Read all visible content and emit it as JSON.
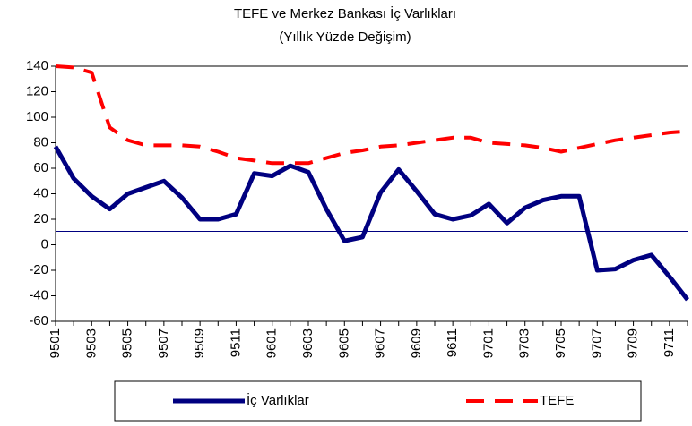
{
  "chart_data": {
    "type": "line",
    "title": "TEFE ve Merkez Bankası İç Varlıkları",
    "subtitle": "(Yıllık Yüzde Değişim)",
    "categories": [
      "9501",
      null,
      "9503",
      null,
      "9505",
      null,
      "9507",
      null,
      "9509",
      null,
      "9511",
      null,
      "9601",
      null,
      "9603",
      null,
      "9605",
      null,
      "9607",
      null,
      "9609",
      null,
      "9611",
      null,
      "9701",
      null,
      "9703",
      null,
      "9705",
      null,
      "9707",
      null,
      "9709",
      null,
      "9711",
      null
    ],
    "series": [
      {
        "name": "İç Varlıklar",
        "color": "#000080",
        "values": [
          77,
          52,
          38,
          28,
          40,
          45,
          50,
          37,
          20,
          20,
          24,
          56,
          54,
          62,
          57,
          28,
          3,
          6,
          41,
          59,
          42,
          24,
          20,
          23,
          32,
          17,
          29,
          35,
          38,
          38,
          -20,
          -19,
          -12,
          -8,
          -25,
          -43
        ]
      },
      {
        "name": "TEFE",
        "color": "#ff0000",
        "dashed": true,
        "values": [
          140,
          139,
          135,
          92,
          82,
          78,
          78,
          78,
          77,
          73,
          68,
          66,
          64,
          64,
          64,
          68,
          72,
          74,
          77,
          78,
          80,
          82,
          84,
          84,
          80,
          79,
          78,
          76,
          73,
          76,
          79,
          82,
          84,
          86,
          88,
          89
        ]
      }
    ],
    "reference_line": {
      "value": 10.5,
      "color": "#000080"
    },
    "ylim": [
      -60,
      140
    ],
    "yticks": [
      -60,
      -40,
      -20,
      0,
      20,
      40,
      60,
      80,
      100,
      120,
      140
    ],
    "legend": "bottom"
  }
}
